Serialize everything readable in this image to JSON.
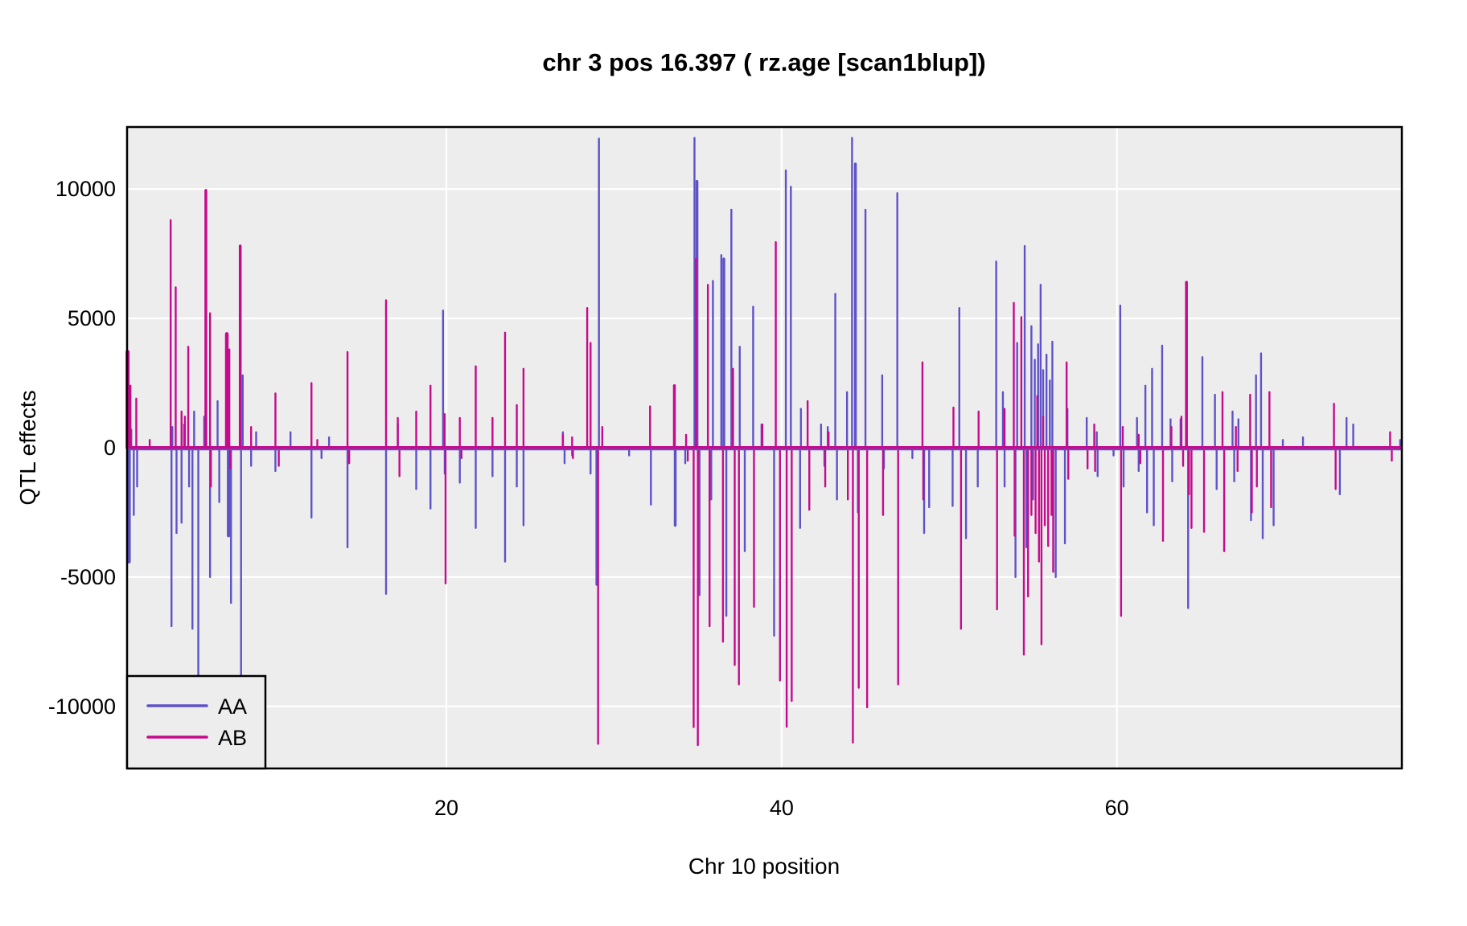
{
  "title": "chr 3 pos 16.397 ( rz.age  [scan1blup])",
  "chart_data": {
    "type": "line",
    "style": "vertical-spike-plot",
    "title": "chr 3 pos 16.397 ( rz.age  [scan1blup])",
    "xlabel": "Chr 10 position",
    "ylabel": "QTL effects",
    "xlim": [
      0.95,
      77.0
    ],
    "ylim": [
      -12400,
      12400
    ],
    "x_ticks": [
      20,
      40,
      60
    ],
    "y_ticks": [
      -10000,
      -5000,
      0,
      5000,
      10000
    ],
    "grid": true,
    "panel_bg": "#EEEDEE",
    "grid_color": "#FFFFFF",
    "border_color": "#000000",
    "baseline": 0,
    "legend_position": "bottom-left",
    "series": [
      {
        "name": "AA",
        "color": "#5E53C6",
        "spikes": [
          [
            1.0,
            -1800,
            3
          ],
          [
            1.05,
            -4400,
            5
          ],
          [
            1.2,
            700
          ],
          [
            1.35,
            -2600
          ],
          [
            1.55,
            -1500
          ],
          [
            3.6,
            -6900
          ],
          [
            3.65,
            800
          ],
          [
            3.9,
            -3300
          ],
          [
            4.2,
            -2900
          ],
          [
            4.35,
            900
          ],
          [
            4.65,
            -1500
          ],
          [
            4.85,
            -7000
          ],
          [
            4.95,
            1400
          ],
          [
            5.2,
            -8800
          ],
          [
            5.55,
            1200
          ],
          [
            5.9,
            -5000
          ],
          [
            6.35,
            1800
          ],
          [
            6.45,
            -2100
          ],
          [
            6.95,
            2000,
            4
          ],
          [
            7.0,
            -3400,
            4
          ],
          [
            7.15,
            -6000
          ],
          [
            7.75,
            -8900
          ],
          [
            7.85,
            2800
          ],
          [
            8.35,
            -700
          ],
          [
            8.65,
            600
          ],
          [
            9.8,
            -900
          ],
          [
            10.7,
            600
          ],
          [
            11.95,
            -2700
          ],
          [
            12.55,
            -400
          ],
          [
            13.0,
            400
          ],
          [
            14.1,
            -3850
          ],
          [
            16.4,
            -5650
          ],
          [
            17.1,
            900
          ],
          [
            18.2,
            -1600
          ],
          [
            19.05,
            -2350
          ],
          [
            19.8,
            5300
          ],
          [
            19.9,
            -1000
          ],
          [
            20.8,
            -1350
          ],
          [
            21.75,
            -3100
          ],
          [
            22.75,
            -1100
          ],
          [
            23.5,
            -4400
          ],
          [
            24.2,
            -1500
          ],
          [
            24.6,
            -3000
          ],
          [
            26.95,
            600
          ],
          [
            27.05,
            -600
          ],
          [
            27.5,
            -300
          ],
          [
            28.6,
            -1000
          ],
          [
            28.95,
            -5300
          ],
          [
            29.1,
            11950
          ],
          [
            30.9,
            -300
          ],
          [
            32.2,
            -2200
          ],
          [
            33.65,
            -3000,
            3.5
          ],
          [
            34.25,
            -600
          ],
          [
            34.8,
            11980
          ],
          [
            34.95,
            10300,
            3.5
          ],
          [
            35.1,
            -5700
          ],
          [
            35.8,
            -2000
          ],
          [
            35.9,
            6450
          ],
          [
            36.4,
            7450
          ],
          [
            36.55,
            7300,
            3.5
          ],
          [
            36.7,
            -6500
          ],
          [
            37.0,
            9200
          ],
          [
            37.5,
            3900
          ],
          [
            37.8,
            -4000
          ],
          [
            38.3,
            5450
          ],
          [
            38.8,
            900
          ],
          [
            39.55,
            -7270
          ],
          [
            40.25,
            10720
          ],
          [
            40.55,
            10090
          ],
          [
            41.1,
            -3100
          ],
          [
            41.15,
            1500
          ],
          [
            42.35,
            900
          ],
          [
            42.55,
            -700
          ],
          [
            42.75,
            800
          ],
          [
            43.2,
            5950
          ],
          [
            43.3,
            -2000
          ],
          [
            43.9,
            2150
          ],
          [
            44.2,
            11980
          ],
          [
            44.4,
            10970,
            3.5
          ],
          [
            44.55,
            -2500
          ],
          [
            45.0,
            9200
          ],
          [
            46.0,
            2800
          ],
          [
            46.1,
            -800
          ],
          [
            46.9,
            9840
          ],
          [
            47.8,
            -400
          ],
          [
            48.5,
            -3300
          ],
          [
            48.8,
            -2300
          ],
          [
            50.2,
            -2250
          ],
          [
            50.6,
            5400
          ],
          [
            51.0,
            -3500
          ],
          [
            51.7,
            -1500
          ],
          [
            52.8,
            7200
          ],
          [
            53.2,
            2150
          ],
          [
            53.3,
            -1500
          ],
          [
            53.95,
            -5000
          ],
          [
            54.05,
            4050
          ],
          [
            54.5,
            7800
          ],
          [
            54.6,
            -3850
          ],
          [
            54.9,
            4700
          ],
          [
            55.0,
            -2000
          ],
          [
            55.1,
            3400
          ],
          [
            55.3,
            4000
          ],
          [
            55.45,
            6300
          ],
          [
            55.6,
            3000
          ],
          [
            55.8,
            3600
          ],
          [
            56.0,
            2600
          ],
          [
            56.15,
            4100
          ],
          [
            56.35,
            -5000
          ],
          [
            56.9,
            -3700
          ],
          [
            57.05,
            1500
          ],
          [
            58.2,
            1150
          ],
          [
            58.8,
            600
          ],
          [
            58.85,
            -1100
          ],
          [
            59.8,
            -300
          ],
          [
            60.2,
            5500
          ],
          [
            60.4,
            -1500
          ],
          [
            61.2,
            1150
          ],
          [
            61.3,
            -900
          ],
          [
            61.7,
            2400
          ],
          [
            61.8,
            -2500
          ],
          [
            62.1,
            3050
          ],
          [
            62.2,
            -3000
          ],
          [
            62.7,
            3950
          ],
          [
            63.2,
            1100
          ],
          [
            63.3,
            -1300
          ],
          [
            63.8,
            1100
          ],
          [
            64.25,
            -6200
          ],
          [
            65.1,
            3500
          ],
          [
            65.85,
            2050
          ],
          [
            65.95,
            -1600
          ],
          [
            66.9,
            1400
          ],
          [
            67.0,
            -1300
          ],
          [
            67.25,
            1100
          ],
          [
            68.0,
            -2800
          ],
          [
            68.3,
            2800
          ],
          [
            68.6,
            3650
          ],
          [
            68.7,
            -3500
          ],
          [
            69.35,
            -3000
          ],
          [
            69.9,
            300
          ],
          [
            71.1,
            400
          ],
          [
            73.3,
            -1800
          ],
          [
            73.7,
            1150
          ],
          [
            74.1,
            900
          ],
          [
            76.9,
            300
          ]
        ]
      },
      {
        "name": "AB",
        "color": "#C60A8C",
        "spikes": [
          [
            0.98,
            3700,
            5
          ],
          [
            1.05,
            1800,
            4
          ],
          [
            1.15,
            2400
          ],
          [
            1.5,
            1900
          ],
          [
            2.3,
            300
          ],
          [
            3.55,
            8800
          ],
          [
            3.85,
            6200
          ],
          [
            4.2,
            1400
          ],
          [
            4.4,
            1200
          ],
          [
            4.6,
            3900
          ],
          [
            5.65,
            9950,
            3.5
          ],
          [
            5.9,
            5200
          ],
          [
            5.95,
            -1500
          ],
          [
            6.9,
            4400,
            4.5
          ],
          [
            7.05,
            3800
          ],
          [
            7.1,
            -800
          ],
          [
            7.7,
            7800,
            3.5
          ],
          [
            8.35,
            800
          ],
          [
            9.8,
            2100
          ],
          [
            10.0,
            -700
          ],
          [
            11.95,
            2500
          ],
          [
            12.3,
            300
          ],
          [
            14.1,
            3700
          ],
          [
            14.2,
            -600
          ],
          [
            16.4,
            5700
          ],
          [
            17.1,
            1150
          ],
          [
            17.2,
            -1100
          ],
          [
            18.2,
            1400
          ],
          [
            19.05,
            2400
          ],
          [
            19.9,
            1300
          ],
          [
            19.95,
            -5250
          ],
          [
            20.8,
            1150
          ],
          [
            20.9,
            -400
          ],
          [
            21.75,
            3150
          ],
          [
            22.75,
            1150
          ],
          [
            23.5,
            4450
          ],
          [
            24.2,
            1650
          ],
          [
            24.6,
            3050
          ],
          [
            26.95,
            500
          ],
          [
            27.5,
            400
          ],
          [
            27.55,
            -400
          ],
          [
            28.4,
            5400
          ],
          [
            28.6,
            4050
          ],
          [
            29.05,
            -11450
          ],
          [
            29.3,
            800
          ],
          [
            32.15,
            1600
          ],
          [
            33.6,
            2400,
            3.5
          ],
          [
            34.3,
            500
          ],
          [
            34.4,
            -500
          ],
          [
            34.75,
            -10800
          ],
          [
            34.9,
            7300
          ],
          [
            35.0,
            -11500
          ],
          [
            35.6,
            6300
          ],
          [
            35.7,
            -6900
          ],
          [
            36.5,
            -7500
          ],
          [
            37.1,
            3050
          ],
          [
            37.2,
            -8400
          ],
          [
            37.45,
            -9150
          ],
          [
            38.35,
            -6150
          ],
          [
            38.85,
            900
          ],
          [
            39.65,
            7950
          ],
          [
            39.9,
            -9000
          ],
          [
            40.3,
            -10790
          ],
          [
            40.6,
            -9790
          ],
          [
            41.55,
            1800
          ],
          [
            41.65,
            -2400
          ],
          [
            42.6,
            -1500
          ],
          [
            42.8,
            600
          ],
          [
            43.95,
            -2000
          ],
          [
            44.25,
            -11400
          ],
          [
            44.6,
            -9280
          ],
          [
            45.1,
            -10040
          ],
          [
            46.05,
            -2600
          ],
          [
            46.95,
            -9150
          ],
          [
            48.4,
            3300
          ],
          [
            48.45,
            -2000
          ],
          [
            50.25,
            1550
          ],
          [
            50.7,
            -7000
          ],
          [
            51.75,
            1400
          ],
          [
            52.85,
            -6250
          ],
          [
            53.3,
            1500
          ],
          [
            53.85,
            5600
          ],
          [
            53.9,
            -3400
          ],
          [
            54.3,
            5050
          ],
          [
            54.45,
            -8000
          ],
          [
            54.7,
            -5750
          ],
          [
            54.9,
            -2600
          ],
          [
            55.15,
            -3300
          ],
          [
            55.25,
            2000
          ],
          [
            55.35,
            -4400
          ],
          [
            55.5,
            -7600
          ],
          [
            55.6,
            1200
          ],
          [
            55.7,
            -3000
          ],
          [
            55.9,
            -3800
          ],
          [
            56.1,
            -2600
          ],
          [
            56.2,
            -4800
          ],
          [
            57.0,
            3300
          ],
          [
            57.1,
            -1200
          ],
          [
            58.25,
            -800
          ],
          [
            58.65,
            900
          ],
          [
            58.7,
            -900
          ],
          [
            60.25,
            -6500
          ],
          [
            60.35,
            800
          ],
          [
            61.3,
            500
          ],
          [
            61.4,
            -600
          ],
          [
            62.75,
            -3600
          ],
          [
            63.25,
            800
          ],
          [
            63.85,
            1200
          ],
          [
            63.95,
            -700
          ],
          [
            64.15,
            6400,
            3.5
          ],
          [
            64.3,
            -1800
          ],
          [
            64.45,
            -3100
          ],
          [
            65.2,
            -3250
          ],
          [
            66.3,
            2150
          ],
          [
            66.4,
            -4000
          ],
          [
            67.1,
            800
          ],
          [
            67.2,
            -900
          ],
          [
            67.95,
            2050
          ],
          [
            68.05,
            -2500
          ],
          [
            68.35,
            -1500
          ],
          [
            69.1,
            2150
          ],
          [
            69.2,
            -2300
          ],
          [
            72.95,
            1700
          ],
          [
            73.05,
            -1600
          ],
          [
            76.3,
            600
          ],
          [
            76.4,
            -500
          ]
        ]
      }
    ]
  },
  "legend": {
    "entries": [
      {
        "label": "AA"
      },
      {
        "label": "AB"
      }
    ]
  }
}
